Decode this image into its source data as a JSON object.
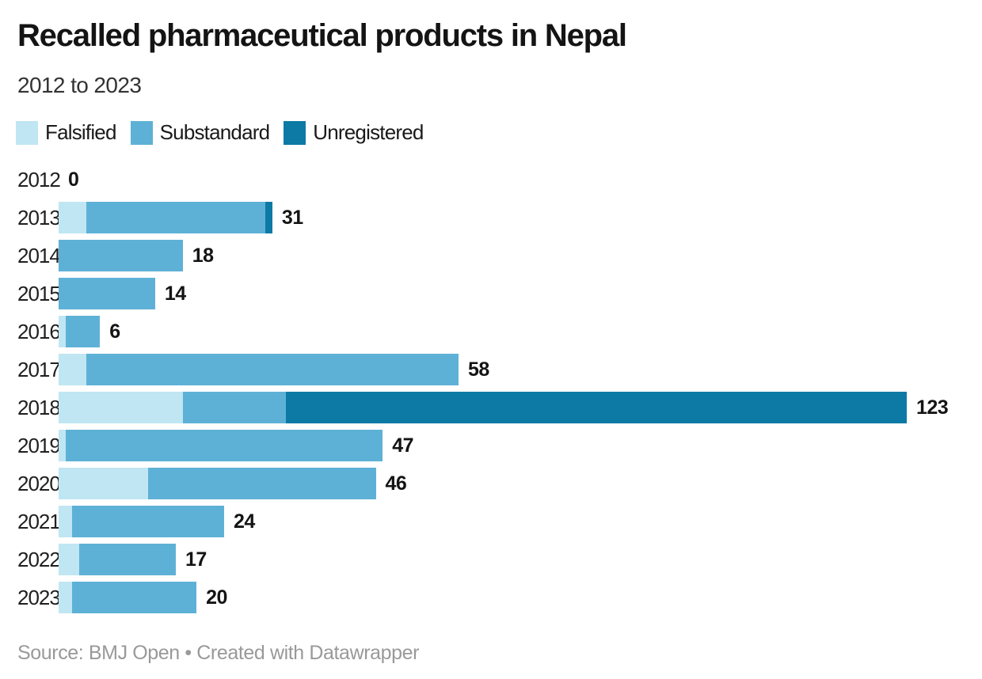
{
  "chart_data": {
    "type": "bar",
    "orientation": "horizontal",
    "stacked": true,
    "title": "Recalled pharmaceutical products in Nepal",
    "subtitle": "2012 to 2023",
    "categories": [
      "2012",
      "2013",
      "2014",
      "2015",
      "2016",
      "2017",
      "2018",
      "2019",
      "2020",
      "2021",
      "2022",
      "2023"
    ],
    "series": [
      {
        "name": "Falsified",
        "color": "#bfe6f2",
        "values": [
          0,
          4,
          0,
          0,
          1,
          4,
          18,
          1,
          13,
          2,
          3,
          2
        ]
      },
      {
        "name": "Substandard",
        "color": "#5eb1d6",
        "values": [
          0,
          26,
          18,
          14,
          5,
          54,
          15,
          46,
          33,
          22,
          14,
          18
        ]
      },
      {
        "name": "Unregistered",
        "color": "#0c7aa4",
        "values": [
          0,
          1,
          0,
          0,
          0,
          0,
          90,
          0,
          0,
          0,
          0,
          0
        ]
      }
    ],
    "totals": [
      0,
      31,
      18,
      14,
      6,
      58,
      123,
      47,
      46,
      24,
      17,
      20
    ],
    "xlim": [
      0,
      123
    ],
    "grid": false,
    "legend_position": "top",
    "value_labels": true
  },
  "footer": {
    "source": "Source: BMJ Open",
    "separator": "•",
    "attribution": "Created with Datawrapper",
    "text_color": "#999999"
  }
}
